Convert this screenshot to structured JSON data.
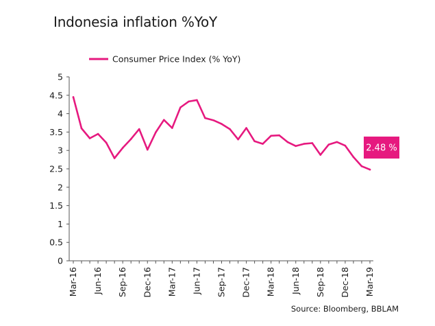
{
  "title": "Indonesia inflation %YoY",
  "source": "Source: Bloomberg, BBLAM",
  "callout": "2.48 %",
  "colors": {
    "series": "#e6197f",
    "axis": "#555555"
  },
  "chart_data": {
    "type": "line",
    "title": "Indonesia inflation %YoY",
    "xlabel": "",
    "ylabel": "",
    "ylim": [
      0,
      5
    ],
    "yticks": [
      "0",
      "0.5",
      "1",
      "1.5",
      "2",
      "2.5",
      "3",
      "3.5",
      "4",
      "4.5",
      "5"
    ],
    "xticks": [
      "Mar-16",
      "Jun-16",
      "Sep-16",
      "Dec-16",
      "Mar-17",
      "Jun-17",
      "Sep-17",
      "Dec-17",
      "Mar-18",
      "Jun-18",
      "Sep-18",
      "Dec-18",
      "Mar-19"
    ],
    "grid": false,
    "legend": "top-left",
    "annotation": "2.48 %",
    "x": [
      "Mar-16",
      "Apr-16",
      "May-16",
      "Jun-16",
      "Jul-16",
      "Aug-16",
      "Sep-16",
      "Oct-16",
      "Nov-16",
      "Dec-16",
      "Jan-17",
      "Feb-17",
      "Mar-17",
      "Apr-17",
      "May-17",
      "Jun-17",
      "Jul-17",
      "Aug-17",
      "Sep-17",
      "Oct-17",
      "Nov-17",
      "Dec-17",
      "Jan-18",
      "Feb-18",
      "Mar-18",
      "Apr-18",
      "May-18",
      "Jun-18",
      "Jul-18",
      "Aug-18",
      "Sep-18",
      "Oct-18",
      "Nov-18",
      "Dec-18",
      "Jan-19",
      "Feb-19",
      "Mar-19"
    ],
    "series": [
      {
        "name": "Consumer Price Index (% YoY)",
        "values": [
          4.45,
          3.6,
          3.33,
          3.45,
          3.21,
          2.79,
          3.07,
          3.31,
          3.58,
          3.02,
          3.49,
          3.83,
          3.61,
          4.17,
          4.33,
          4.37,
          3.88,
          3.82,
          3.72,
          3.58,
          3.3,
          3.61,
          3.25,
          3.18,
          3.4,
          3.41,
          3.23,
          3.12,
          3.18,
          3.2,
          2.88,
          3.16,
          3.23,
          3.13,
          2.82,
          2.57,
          2.48
        ]
      }
    ]
  }
}
